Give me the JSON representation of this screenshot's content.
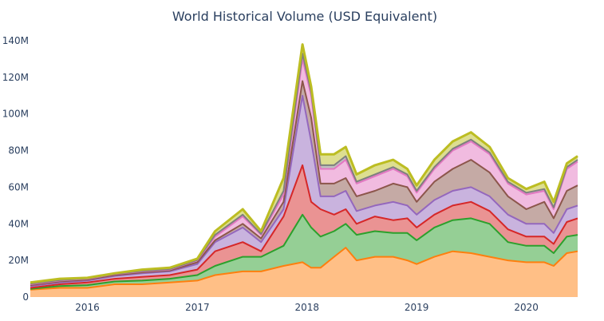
{
  "chart_data": {
    "type": "area",
    "stacked": true,
    "title": "World Historical Volume (USD Equivalent)",
    "xlabel": "",
    "ylabel": "",
    "xlim": [
      "2015-06-25",
      "2020-06-20"
    ],
    "ylim": [
      0,
      147000000
    ],
    "grid": false,
    "legend": "none",
    "x_ticks": [
      {
        "date": "2016-01-01",
        "label": "2016"
      },
      {
        "date": "2017-01-01",
        "label": "2017"
      },
      {
        "date": "2018-01-01",
        "label": "2018"
      },
      {
        "date": "2019-01-01",
        "label": "2019"
      },
      {
        "date": "2020-01-01",
        "label": "2020"
      }
    ],
    "y_ticks": [
      {
        "value": 0,
        "label": "0"
      },
      {
        "value": 20000000,
        "label": "20M"
      },
      {
        "value": 40000000,
        "label": "40M"
      },
      {
        "value": 60000000,
        "label": "60M"
      },
      {
        "value": 80000000,
        "label": "80M"
      },
      {
        "value": 100000000,
        "label": "100M"
      },
      {
        "value": 120000000,
        "label": "120M"
      },
      {
        "value": 140000000,
        "label": "140M"
      }
    ],
    "value_unit": "millions USD",
    "x": [
      "2015-06-25",
      "2015-10-01",
      "2016-01-01",
      "2016-04-01",
      "2016-07-01",
      "2016-10-01",
      "2017-01-01",
      "2017-03-01",
      "2017-06-01",
      "2017-08-01",
      "2017-10-15",
      "2017-12-17",
      "2018-01-15",
      "2018-02-15",
      "2018-04-01",
      "2018-05-10",
      "2018-06-15",
      "2018-08-15",
      "2018-10-15",
      "2018-12-01",
      "2019-01-01",
      "2019-03-01",
      "2019-05-01",
      "2019-07-01",
      "2019-09-01",
      "2019-11-01",
      "2020-01-01",
      "2020-03-01",
      "2020-04-01",
      "2020-05-15",
      "2020-06-20"
    ],
    "series": [
      {
        "color": "#ff7f0e",
        "values": [
          4,
          5,
          5,
          7,
          7,
          8,
          9,
          12,
          14,
          14,
          17,
          19,
          16,
          16,
          22,
          27,
          20,
          22,
          22,
          20,
          18,
          22,
          25,
          24,
          22,
          20,
          19,
          19,
          17,
          24,
          25
        ]
      },
      {
        "color": "#2ca02c",
        "values": [
          0.5,
          1,
          1.5,
          1.5,
          2,
          2,
          3,
          5,
          8,
          8,
          11,
          26,
          22,
          17,
          14,
          13,
          14,
          14,
          13,
          15,
          13,
          16,
          17,
          19,
          18,
          10,
          9,
          9,
          7,
          9,
          9
        ]
      },
      {
        "color": "#d62728",
        "values": [
          0.5,
          1,
          1.5,
          1.5,
          2,
          2,
          3,
          8,
          8,
          3,
          16,
          27,
          14,
          15,
          9,
          8,
          6,
          8,
          7,
          8,
          7,
          7,
          8,
          9,
          7,
          7,
          5,
          5,
          5,
          8,
          9
        ]
      },
      {
        "color": "#9467bd",
        "values": [
          1,
          1,
          1,
          1.5,
          2,
          2,
          3,
          5,
          8,
          5,
          4,
          38,
          33,
          7,
          10,
          10,
          7,
          6,
          10,
          7,
          7,
          8,
          8,
          8,
          8,
          8,
          7,
          7,
          6,
          7,
          7
        ]
      },
      {
        "color": "#8c564b",
        "values": [
          0.5,
          0.5,
          0.5,
          0.5,
          0.5,
          0.5,
          1,
          1,
          2,
          2,
          4,
          8,
          13,
          7,
          7,
          7,
          8,
          8,
          10,
          10,
          7,
          10,
          12,
          15,
          13,
          10,
          8,
          12,
          8,
          10,
          11
        ]
      },
      {
        "color": "#e377c2",
        "values": [
          0.5,
          0.5,
          0.5,
          0.5,
          0.5,
          0.5,
          1,
          2,
          4,
          2,
          4,
          12,
          12,
          8,
          8,
          10,
          7,
          8,
          8,
          6,
          5,
          7,
          10,
          10,
          10,
          7,
          8,
          6,
          5,
          12,
          13
        ]
      },
      {
        "color": "#7f7f7f",
        "values": [
          0.3,
          0.3,
          0.2,
          0.2,
          0.3,
          0.3,
          0.3,
          1,
          1,
          0.5,
          2,
          3,
          2,
          2,
          2,
          2,
          1,
          1,
          1,
          1,
          1,
          1,
          1,
          1,
          1,
          1,
          1,
          1,
          1,
          1,
          1
        ]
      },
      {
        "color": "#bcbd22",
        "values": [
          0.7,
          0.7,
          0.3,
          0.3,
          0.7,
          0.7,
          0.7,
          2,
          3,
          1.5,
          7,
          5,
          3,
          6,
          6,
          5,
          4,
          5,
          4,
          3,
          3,
          4,
          4,
          4,
          3,
          2,
          2,
          4,
          3,
          2,
          2
        ]
      }
    ]
  }
}
